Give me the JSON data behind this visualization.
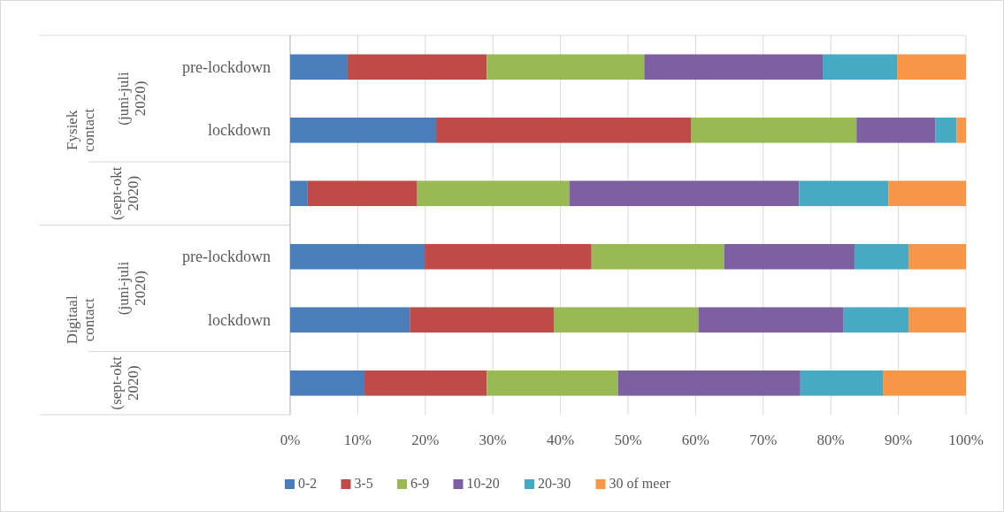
{
  "chart_data": {
    "type": "bar",
    "orientation": "horizontal",
    "stacked": true,
    "categories": [
      "pre-lockdown",
      "lockdown",
      null,
      "pre-lockdown",
      "lockdown",
      null
    ],
    "annotations": [
      "Fysiek contact",
      "(juni-juli 2020)",
      "(sept-okt 2020)",
      "Digitaal contact",
      "(juni-juli 2020)",
      "(sept-okt 2020)"
    ],
    "series": [
      {
        "name": "0-2",
        "color": "#4a7ebb",
        "values": [
          8.5,
          21.6,
          2.6,
          19.9,
          17.7,
          11.0
        ]
      },
      {
        "name": "3-5",
        "color": "#be4b48",
        "values": [
          20.6,
          37.7,
          16.2,
          24.7,
          21.3,
          18.1
        ]
      },
      {
        "name": "6-9",
        "color": "#98b954",
        "values": [
          23.3,
          24.5,
          22.5,
          19.6,
          21.4,
          19.4
        ]
      },
      {
        "name": "10-20",
        "color": "#7d60a0",
        "values": [
          26.4,
          11.7,
          34.0,
          19.3,
          21.5,
          27.0
        ]
      },
      {
        "name": "20-30",
        "color": "#46aac5",
        "values": [
          11.0,
          3.1,
          13.2,
          8.0,
          9.6,
          12.2
        ]
      },
      {
        "name": "30 of meer",
        "color": "#f79646",
        "values": [
          10.2,
          1.4,
          11.5,
          8.5,
          8.5,
          12.3
        ]
      }
    ],
    "xlim": [
      0,
      100
    ],
    "xticks": [
      {
        "value": 0,
        "label": "0%"
      },
      {
        "value": 10,
        "label": "10%"
      },
      {
        "value": 20,
        "label": "20%"
      },
      {
        "value": 30,
        "label": "30%"
      },
      {
        "value": 40,
        "label": "40%"
      },
      {
        "value": 50,
        "label": "50%"
      },
      {
        "value": 60,
        "label": "60%"
      },
      {
        "value": 70,
        "label": "70%"
      },
      {
        "value": 80,
        "label": "80%"
      },
      {
        "value": 90,
        "label": "90%"
      },
      {
        "value": 100,
        "label": "100%"
      }
    ],
    "grid": "x",
    "legend": "bottom"
  }
}
